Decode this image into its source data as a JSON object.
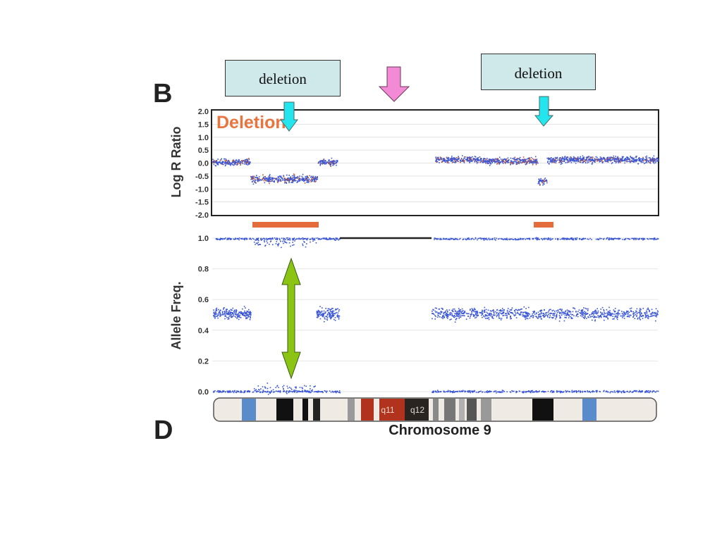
{
  "callouts": {
    "left": "deletion",
    "right": "deletion"
  },
  "panel_letters": {
    "top": "B",
    "bottom": "D"
  },
  "colors": {
    "points": "#3a56d6",
    "points_secondary": "#b3543b",
    "deletion_label": "#e8743f",
    "deletion_bar": "#e46c3a",
    "callout_fill": "#cfe8ea",
    "cyan_arrow": "#22e5ee",
    "pink_arrow": "#f28ad6",
    "green_arrow": "#8cc414"
  },
  "chart_data": [
    {
      "type": "scatter",
      "title": "",
      "annotation": "Deletion",
      "xlabel": "",
      "ylabel": "Log R Ratio",
      "ylim": [
        -2.0,
        2.0
      ],
      "yticks": [
        "2.0",
        "1.5",
        "1.0",
        "0.5",
        "0.0",
        "-0.5",
        "-1.0",
        "-1.5",
        "-2.0"
      ],
      "grid": true,
      "segments": [
        {
          "x_range": [
            0.0,
            0.17
          ],
          "mean": 0.05
        },
        {
          "x_range": [
            0.17,
            0.47
          ],
          "mean": -0.6,
          "deletion": true
        },
        {
          "x_range": [
            0.47,
            0.56
          ],
          "mean": 0.05
        },
        {
          "x_range": [
            0.56,
            1.0
          ],
          "mean": 0.1,
          "note": "gap (centromere)"
        },
        {
          "x_range": [
            1.0,
            1.2
          ],
          "mean": 0.15
        },
        {
          "x_range": [
            1.2,
            1.46
          ],
          "mean": 0.1
        },
        {
          "x_range": [
            1.46,
            1.5
          ],
          "mean": -0.7,
          "deletion": true
        },
        {
          "x_range": [
            1.5,
            2.0
          ],
          "mean": 0.15
        }
      ]
    },
    {
      "type": "scatter",
      "title": "",
      "xlabel": "Chromosome 9",
      "ylabel": "Allele Freq.",
      "ylim": [
        0.0,
        1.0
      ],
      "yticks": [
        "1.0",
        "0.8",
        "0.6",
        "0.4",
        "0.2",
        "0.0"
      ],
      "grid": true,
      "ideogram_labels": [
        "q11",
        "q12"
      ]
    }
  ]
}
